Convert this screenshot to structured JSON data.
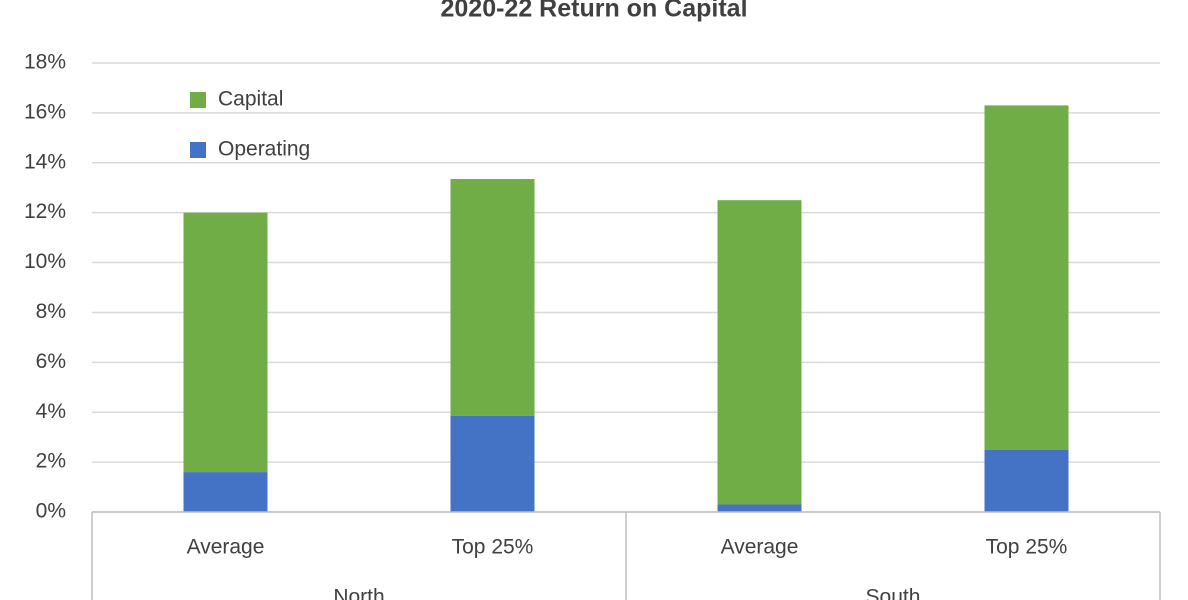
{
  "chart_data": {
    "type": "stacked_bar",
    "title": "2020-22 Return on Capital",
    "categories": [
      "Average",
      "Top 25%",
      "Average",
      "Top 25%"
    ],
    "groups": [
      "North",
      "South"
    ],
    "series": [
      {
        "name": "Operating",
        "color": "#4472c4",
        "values": [
          1.6,
          3.85,
          0.3,
          2.5
        ]
      },
      {
        "name": "Capital",
        "color": "#70ad47",
        "values": [
          10.4,
          9.5,
          12.2,
          13.8
        ]
      }
    ],
    "ylim": [
      0,
      18
    ],
    "yticks": [
      {
        "value": 0,
        "label": "0%"
      },
      {
        "value": 2,
        "label": "2%"
      },
      {
        "value": 4,
        "label": "4%"
      },
      {
        "value": 6,
        "label": "6%"
      },
      {
        "value": 8,
        "label": "8%"
      },
      {
        "value": 10,
        "label": "10%"
      },
      {
        "value": 12,
        "label": "12%"
      },
      {
        "value": 14,
        "label": "14%"
      },
      {
        "value": 16,
        "label": "16%"
      },
      {
        "value": 18,
        "label": "18%"
      }
    ],
    "grid": true,
    "legend": "top-left"
  }
}
